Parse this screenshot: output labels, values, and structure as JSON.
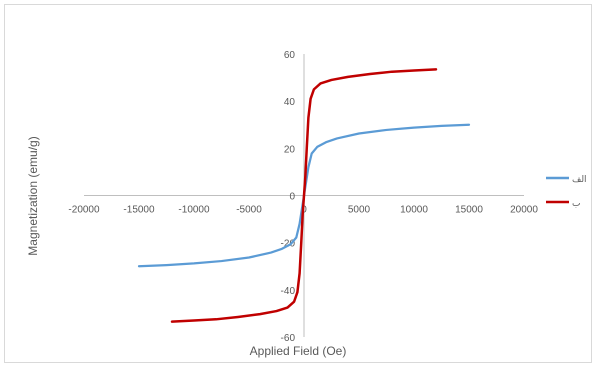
{
  "chart_data": {
    "type": "line",
    "xlabel": "Applied Field (Oe)",
    "ylabel": "Magnetization (emu/g)",
    "xlim": [
      -20000,
      20000
    ],
    "ylim": [
      -60,
      60
    ],
    "x_ticks": [
      -20000,
      -15000,
      -10000,
      -5000,
      0,
      5000,
      10000,
      15000,
      20000
    ],
    "y_ticks": [
      -60,
      -40,
      -20,
      0,
      20,
      40,
      60
    ],
    "grid": false,
    "legend_position": "right",
    "series": [
      {
        "name": "الف",
        "color": "#5b9bd5",
        "points": [
          [
            -15000,
            -30
          ],
          [
            -12500,
            -29.5
          ],
          [
            -10000,
            -28.8
          ],
          [
            -7500,
            -27.8
          ],
          [
            -5000,
            -26.3
          ],
          [
            -3000,
            -24.2
          ],
          [
            -2000,
            -22.6
          ],
          [
            -1200,
            -20.6
          ],
          [
            -700,
            -17.8
          ],
          [
            -400,
            -12
          ],
          [
            -200,
            -6
          ],
          [
            0,
            0
          ],
          [
            200,
            6
          ],
          [
            400,
            12
          ],
          [
            700,
            17.8
          ],
          [
            1200,
            20.6
          ],
          [
            2000,
            22.6
          ],
          [
            3000,
            24.2
          ],
          [
            5000,
            26.3
          ],
          [
            7500,
            27.8
          ],
          [
            10000,
            28.8
          ],
          [
            12500,
            29.5
          ],
          [
            15000,
            30
          ]
        ]
      },
      {
        "name": "ب",
        "color": "#c00000",
        "points": [
          [
            -12000,
            -53.5
          ],
          [
            -10000,
            -53
          ],
          [
            -8000,
            -52.5
          ],
          [
            -6000,
            -51.5
          ],
          [
            -4000,
            -50.3
          ],
          [
            -2500,
            -49
          ],
          [
            -1500,
            -47.5
          ],
          [
            -900,
            -45
          ],
          [
            -600,
            -41
          ],
          [
            -400,
            -33
          ],
          [
            -250,
            -20
          ],
          [
            -120,
            -8
          ],
          [
            0,
            0
          ],
          [
            120,
            8
          ],
          [
            250,
            20
          ],
          [
            400,
            33
          ],
          [
            600,
            41
          ],
          [
            900,
            45
          ],
          [
            1500,
            47.5
          ],
          [
            2500,
            49
          ],
          [
            4000,
            50.3
          ],
          [
            6000,
            51.5
          ],
          [
            8000,
            52.5
          ],
          [
            10000,
            53
          ],
          [
            12000,
            53.5
          ]
        ]
      }
    ]
  }
}
